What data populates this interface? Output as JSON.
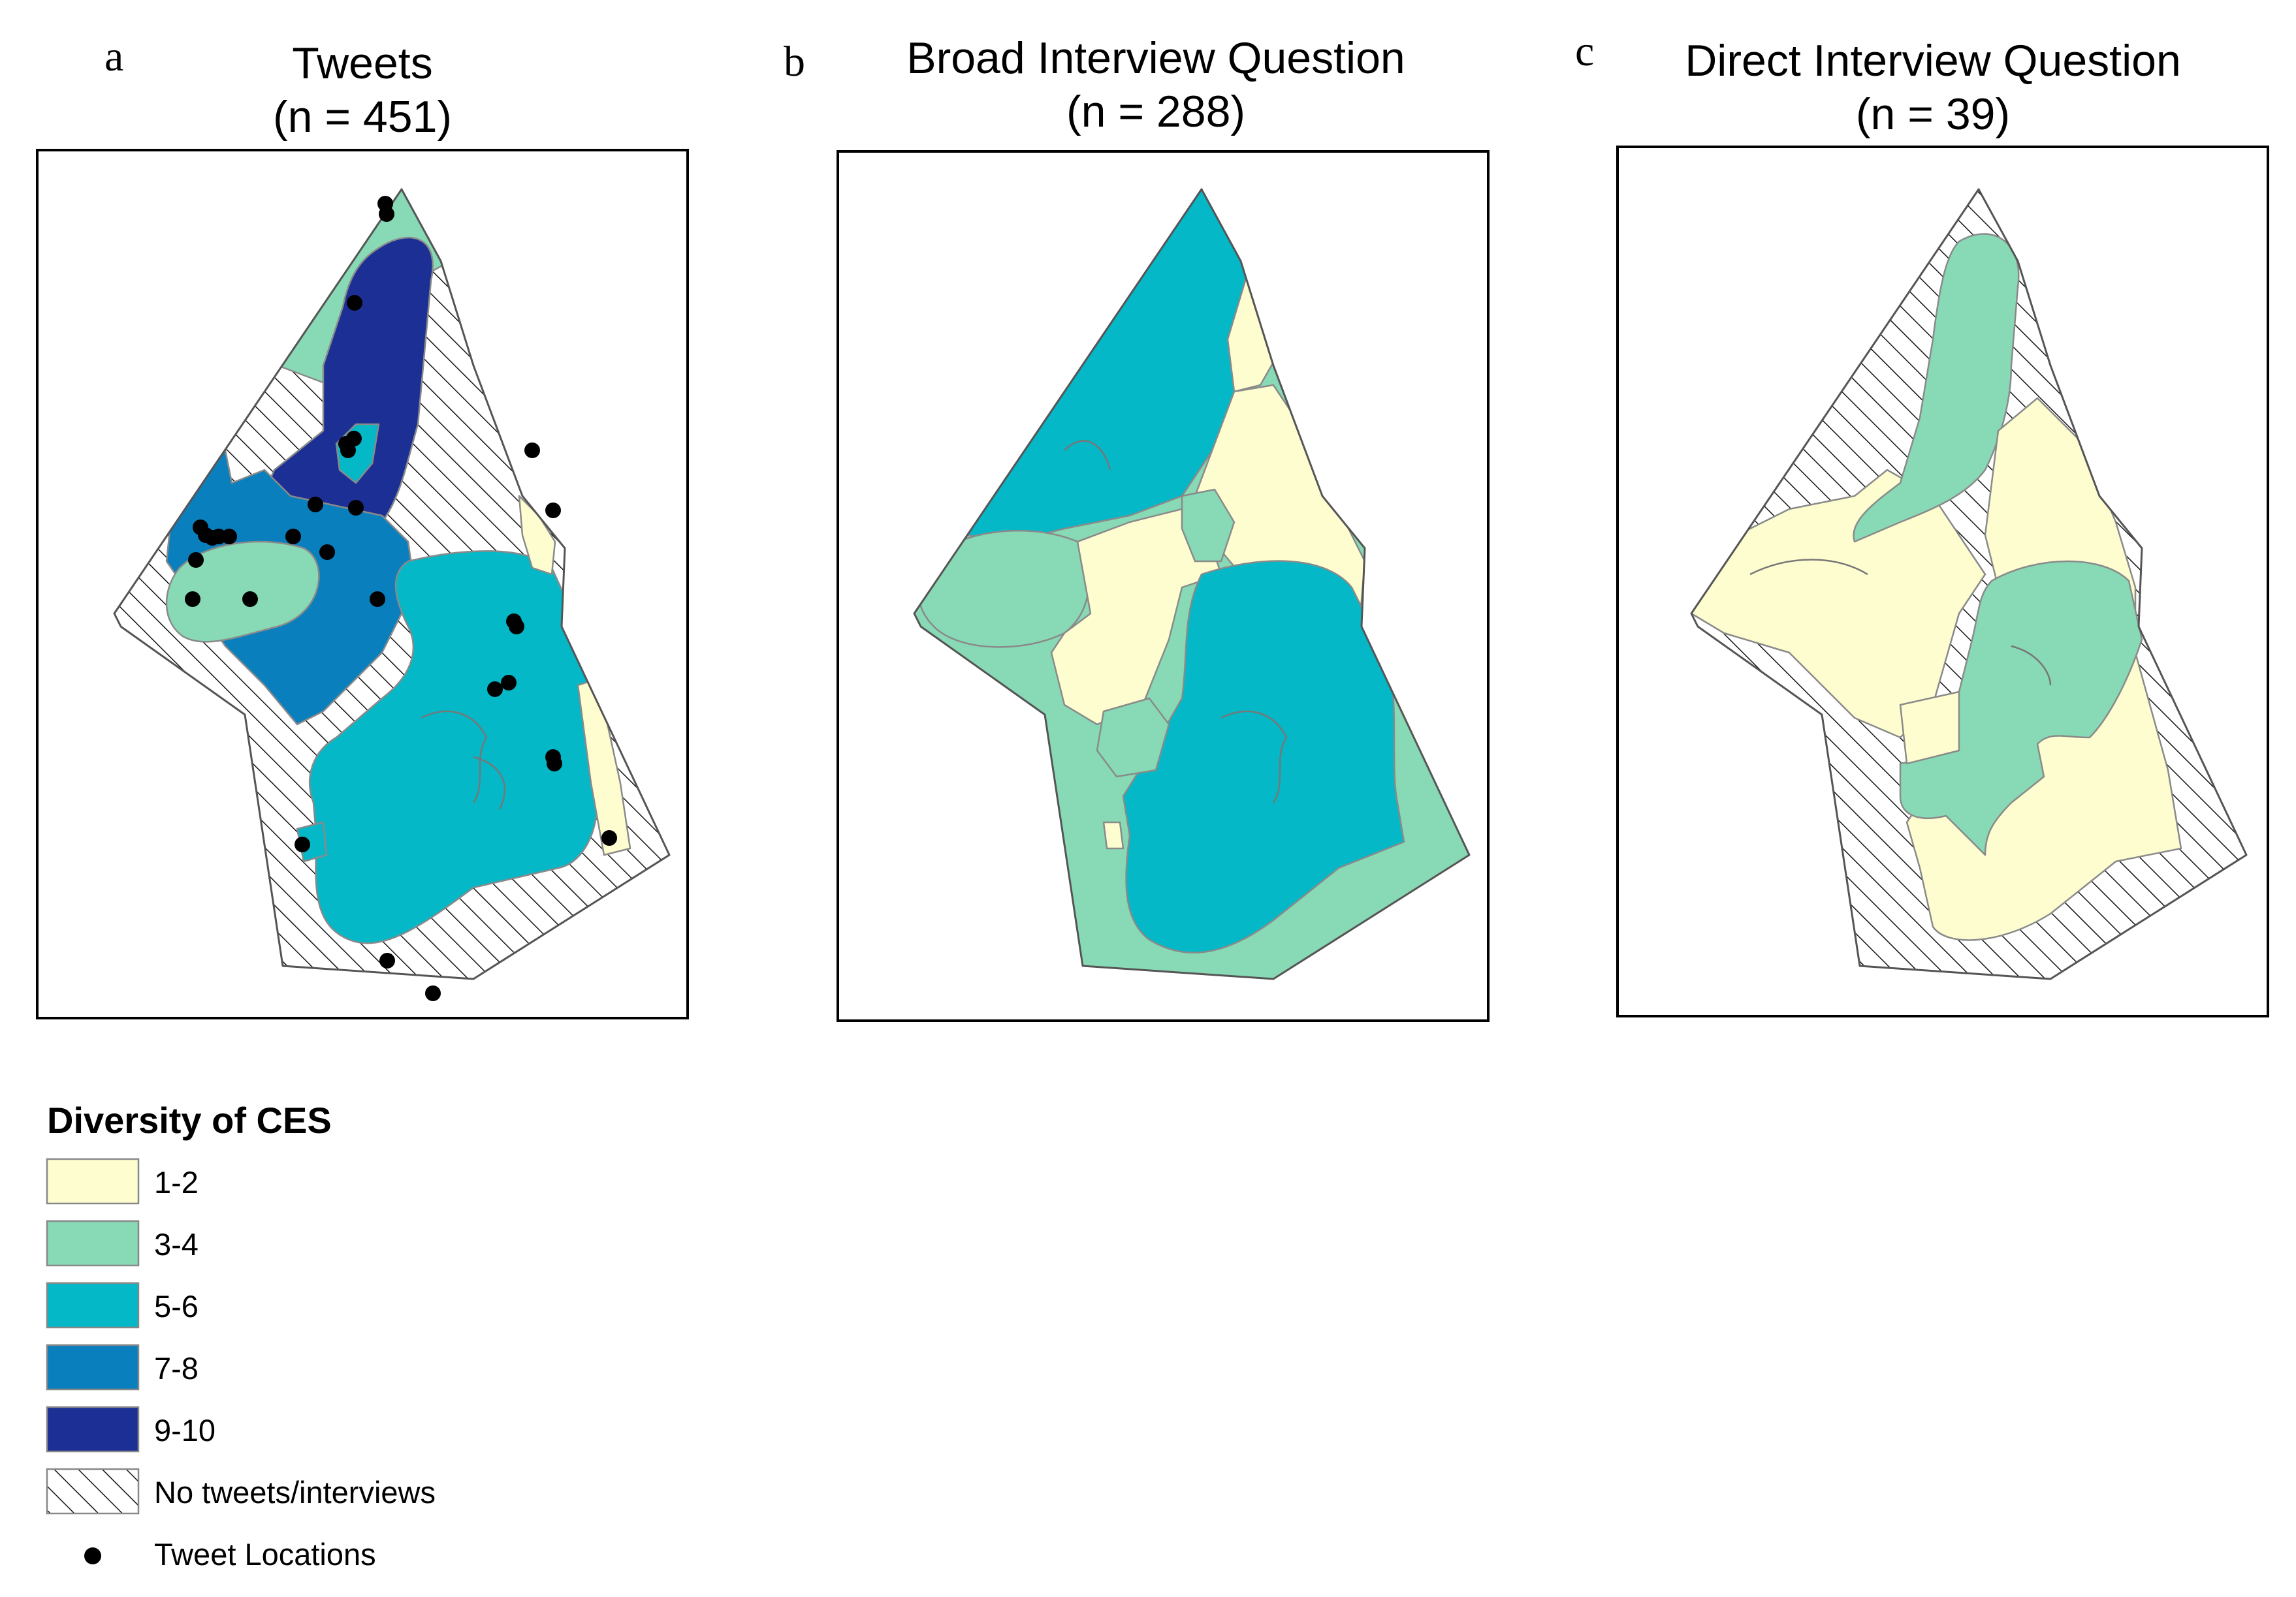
{
  "panels": [
    {
      "letter": "a",
      "title_line1": "Tweets",
      "title_line2": "(n = 451)"
    },
    {
      "letter": "b",
      "title_line1": "Broad Interview Question",
      "title_line2": "(n = 288)"
    },
    {
      "letter": "c",
      "title_line1": "Direct Interview Question",
      "title_line2": "(n = 39)"
    }
  ],
  "legend": {
    "title": "Diversity of CES",
    "classes": [
      {
        "label": "1-2",
        "color": "#fefdd0"
      },
      {
        "label": "3-4",
        "color": "#87dab5"
      },
      {
        "label": "5-6",
        "color": "#04b8c8"
      },
      {
        "label": "7-8",
        "color": "#0a7fbd"
      },
      {
        "label": "9-10",
        "color": "#1b2f95"
      }
    ],
    "hatch_label": "No tweets/interviews",
    "points_label": "Tweet Locations"
  }
}
